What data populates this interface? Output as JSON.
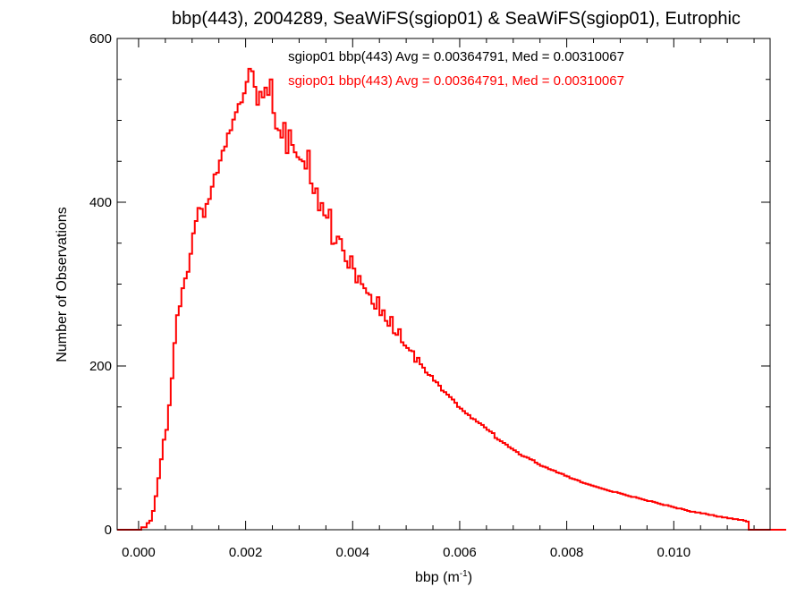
{
  "chart_data": {
    "type": "histogram-step",
    "title": "bbp(443), 2004289, SeaWiFS(sgiop01) & SeaWiFS(sgiop01), Eutrophic",
    "xlabel": "bbp (m",
    "xlabel_sup": "-1",
    "xlabel_tail": ")",
    "ylabel": "Number of Observations",
    "xlim": [
      -0.0004,
      0.0118
    ],
    "ylim": [
      0,
      600
    ],
    "x_ticks": [
      0.0,
      0.002,
      0.004,
      0.006,
      0.008,
      0.01
    ],
    "x_tick_labels": [
      "0.000",
      "0.002",
      "0.004",
      "0.006",
      "0.008",
      "0.010"
    ],
    "y_ticks": [
      0,
      200,
      400,
      600
    ],
    "y_tick_labels": [
      "0",
      "200",
      "400",
      "600"
    ],
    "grid": false,
    "annotations": [
      {
        "text": "sgiop01 bbp(443) Avg = 0.00364791, Med = 0.00310067",
        "color": "#000000"
      },
      {
        "text": "sgiop01 bbp(443) Avg = 0.00364791, Med = 0.00310067",
        "color": "#ff0000"
      }
    ],
    "series": [
      {
        "color": "#ff0000",
        "bin_width": 5e-05,
        "bin_start": -0.0004,
        "values": [
          0,
          0,
          0,
          0,
          0,
          0,
          0,
          0,
          0,
          3,
          3,
          8,
          11,
          23,
          41,
          63,
          86,
          110,
          122,
          152,
          185,
          228,
          262,
          273,
          295,
          307,
          315,
          337,
          362,
          377,
          393,
          392,
          382,
          398,
          404,
          419,
          434,
          436,
          451,
          463,
          468,
          484,
          488,
          501,
          510,
          520,
          522,
          533,
          547,
          563,
          560,
          541,
          519,
          535,
          528,
          540,
          531,
          550,
          509,
          490,
          488,
          479,
          497,
          460,
          488,
          470,
          461,
          455,
          452,
          450,
          441,
          463,
          423,
          411,
          417,
          390,
          399,
          384,
          381,
          391,
          349,
          350,
          358,
          355,
          341,
          328,
          320,
          334,
          319,
          302,
          310,
          300,
          295,
          289,
          287,
          276,
          270,
          284,
          262,
          268,
          255,
          249,
          260,
          240,
          238,
          245,
          229,
          225,
          222,
          219,
          218,
          205,
          210,
          202,
          198,
          192,
          189,
          188,
          182,
          180,
          176,
          170,
          168,
          165,
          162,
          159,
          155,
          150,
          148,
          145,
          142,
          140,
          136,
          135,
          132,
          130,
          128,
          125,
          122,
          120,
          118,
          112,
          110,
          108,
          106,
          104,
          101,
          99,
          97,
          95,
          92,
          90,
          89,
          88,
          86,
          85,
          82,
          80,
          78,
          77,
          76,
          74,
          73,
          72,
          70,
          69,
          68,
          66,
          65,
          63,
          62,
          61,
          60,
          58,
          57,
          56,
          55,
          54,
          53,
          52,
          51,
          50,
          49,
          48,
          47,
          46,
          46,
          45,
          44,
          43,
          42,
          41,
          40,
          40,
          39,
          38,
          37,
          36,
          35,
          35,
          34,
          33,
          32,
          31,
          30,
          30,
          29,
          28,
          27,
          26,
          26,
          25,
          24,
          23,
          22,
          22,
          21,
          21,
          20,
          20,
          19,
          18,
          18,
          17,
          16,
          16,
          15,
          15,
          14,
          14,
          13,
          13,
          12,
          12,
          11,
          10,
          0,
          0,
          0,
          0,
          0,
          0,
          0,
          0,
          0,
          0,
          0,
          0,
          0,
          0,
          0
        ]
      }
    ]
  }
}
